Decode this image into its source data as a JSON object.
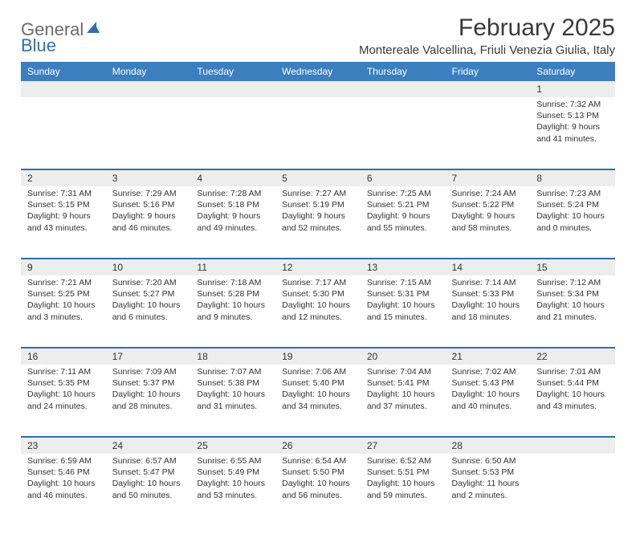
{
  "logo": {
    "general": "General",
    "blue": "Blue"
  },
  "title": "February 2025",
  "location": "Montereale Valcellina, Friuli Venezia Giulia, Italy",
  "colors": {
    "header_bg": "#3b7fbf",
    "header_text": "#ffffff",
    "row_divider": "#2f6fb0",
    "daynum_bg": "#ededed",
    "text": "#333333",
    "logo_gray": "#6b6b6b",
    "logo_blue": "#2f6fb0",
    "title_color": "#3a3a3a"
  },
  "day_names": [
    "Sunday",
    "Monday",
    "Tuesday",
    "Wednesday",
    "Thursday",
    "Friday",
    "Saturday"
  ],
  "weeks": [
    [
      {
        "n": "",
        "lines": []
      },
      {
        "n": "",
        "lines": []
      },
      {
        "n": "",
        "lines": []
      },
      {
        "n": "",
        "lines": []
      },
      {
        "n": "",
        "lines": []
      },
      {
        "n": "",
        "lines": []
      },
      {
        "n": "1",
        "lines": [
          "Sunrise: 7:32 AM",
          "Sunset: 5:13 PM",
          "Daylight: 9 hours",
          "and 41 minutes."
        ]
      }
    ],
    [
      {
        "n": "2",
        "lines": [
          "Sunrise: 7:31 AM",
          "Sunset: 5:15 PM",
          "Daylight: 9 hours",
          "and 43 minutes."
        ]
      },
      {
        "n": "3",
        "lines": [
          "Sunrise: 7:29 AM",
          "Sunset: 5:16 PM",
          "Daylight: 9 hours",
          "and 46 minutes."
        ]
      },
      {
        "n": "4",
        "lines": [
          "Sunrise: 7:28 AM",
          "Sunset: 5:18 PM",
          "Daylight: 9 hours",
          "and 49 minutes."
        ]
      },
      {
        "n": "5",
        "lines": [
          "Sunrise: 7:27 AM",
          "Sunset: 5:19 PM",
          "Daylight: 9 hours",
          "and 52 minutes."
        ]
      },
      {
        "n": "6",
        "lines": [
          "Sunrise: 7:25 AM",
          "Sunset: 5:21 PM",
          "Daylight: 9 hours",
          "and 55 minutes."
        ]
      },
      {
        "n": "7",
        "lines": [
          "Sunrise: 7:24 AM",
          "Sunset: 5:22 PM",
          "Daylight: 9 hours",
          "and 58 minutes."
        ]
      },
      {
        "n": "8",
        "lines": [
          "Sunrise: 7:23 AM",
          "Sunset: 5:24 PM",
          "Daylight: 10 hours",
          "and 0 minutes."
        ]
      }
    ],
    [
      {
        "n": "9",
        "lines": [
          "Sunrise: 7:21 AM",
          "Sunset: 5:25 PM",
          "Daylight: 10 hours",
          "and 3 minutes."
        ]
      },
      {
        "n": "10",
        "lines": [
          "Sunrise: 7:20 AM",
          "Sunset: 5:27 PM",
          "Daylight: 10 hours",
          "and 6 minutes."
        ]
      },
      {
        "n": "11",
        "lines": [
          "Sunrise: 7:18 AM",
          "Sunset: 5:28 PM",
          "Daylight: 10 hours",
          "and 9 minutes."
        ]
      },
      {
        "n": "12",
        "lines": [
          "Sunrise: 7:17 AM",
          "Sunset: 5:30 PM",
          "Daylight: 10 hours",
          "and 12 minutes."
        ]
      },
      {
        "n": "13",
        "lines": [
          "Sunrise: 7:15 AM",
          "Sunset: 5:31 PM",
          "Daylight: 10 hours",
          "and 15 minutes."
        ]
      },
      {
        "n": "14",
        "lines": [
          "Sunrise: 7:14 AM",
          "Sunset: 5:33 PM",
          "Daylight: 10 hours",
          "and 18 minutes."
        ]
      },
      {
        "n": "15",
        "lines": [
          "Sunrise: 7:12 AM",
          "Sunset: 5:34 PM",
          "Daylight: 10 hours",
          "and 21 minutes."
        ]
      }
    ],
    [
      {
        "n": "16",
        "lines": [
          "Sunrise: 7:11 AM",
          "Sunset: 5:35 PM",
          "Daylight: 10 hours",
          "and 24 minutes."
        ]
      },
      {
        "n": "17",
        "lines": [
          "Sunrise: 7:09 AM",
          "Sunset: 5:37 PM",
          "Daylight: 10 hours",
          "and 28 minutes."
        ]
      },
      {
        "n": "18",
        "lines": [
          "Sunrise: 7:07 AM",
          "Sunset: 5:38 PM",
          "Daylight: 10 hours",
          "and 31 minutes."
        ]
      },
      {
        "n": "19",
        "lines": [
          "Sunrise: 7:06 AM",
          "Sunset: 5:40 PM",
          "Daylight: 10 hours",
          "and 34 minutes."
        ]
      },
      {
        "n": "20",
        "lines": [
          "Sunrise: 7:04 AM",
          "Sunset: 5:41 PM",
          "Daylight: 10 hours",
          "and 37 minutes."
        ]
      },
      {
        "n": "21",
        "lines": [
          "Sunrise: 7:02 AM",
          "Sunset: 5:43 PM",
          "Daylight: 10 hours",
          "and 40 minutes."
        ]
      },
      {
        "n": "22",
        "lines": [
          "Sunrise: 7:01 AM",
          "Sunset: 5:44 PM",
          "Daylight: 10 hours",
          "and 43 minutes."
        ]
      }
    ],
    [
      {
        "n": "23",
        "lines": [
          "Sunrise: 6:59 AM",
          "Sunset: 5:46 PM",
          "Daylight: 10 hours",
          "and 46 minutes."
        ]
      },
      {
        "n": "24",
        "lines": [
          "Sunrise: 6:57 AM",
          "Sunset: 5:47 PM",
          "Daylight: 10 hours",
          "and 50 minutes."
        ]
      },
      {
        "n": "25",
        "lines": [
          "Sunrise: 6:55 AM",
          "Sunset: 5:49 PM",
          "Daylight: 10 hours",
          "and 53 minutes."
        ]
      },
      {
        "n": "26",
        "lines": [
          "Sunrise: 6:54 AM",
          "Sunset: 5:50 PM",
          "Daylight: 10 hours",
          "and 56 minutes."
        ]
      },
      {
        "n": "27",
        "lines": [
          "Sunrise: 6:52 AM",
          "Sunset: 5:51 PM",
          "Daylight: 10 hours",
          "and 59 minutes."
        ]
      },
      {
        "n": "28",
        "lines": [
          "Sunrise: 6:50 AM",
          "Sunset: 5:53 PM",
          "Daylight: 11 hours",
          "and 2 minutes."
        ]
      },
      {
        "n": "",
        "lines": []
      }
    ]
  ]
}
